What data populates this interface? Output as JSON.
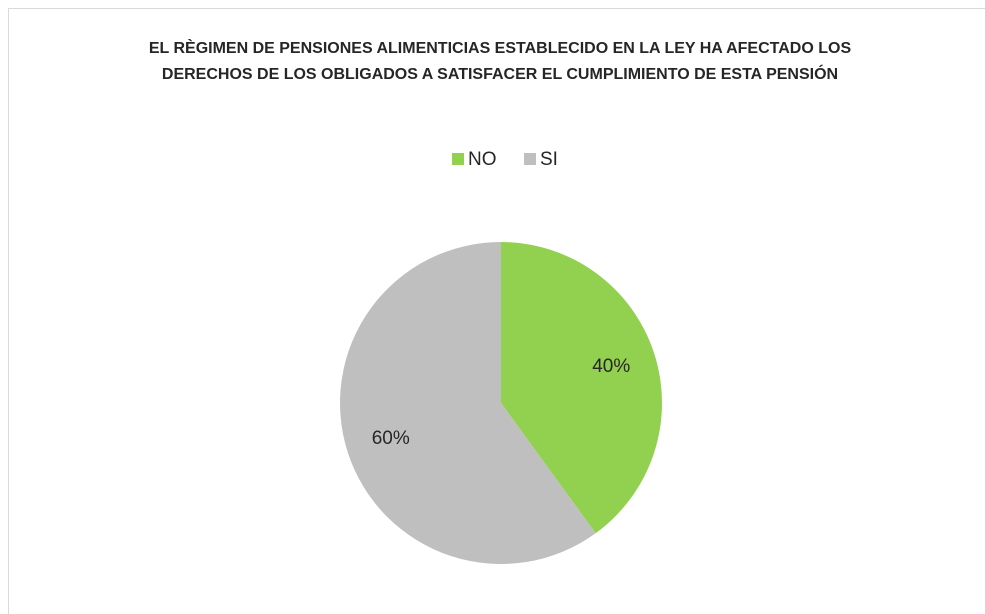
{
  "chart_data": {
    "type": "pie",
    "title": "EL RÈGIMEN DE PENSIONES ALIMENTICIAS ESTABLECIDO EN LA LEY HA AFECTADO LOS DERECHOS DE LOS OBLIGADOS A SATISFACER EL CUMPLIMIENTO DE ESTA PENSIÓN",
    "categories": [
      "NO",
      "SI"
    ],
    "values": [
      40,
      60
    ],
    "value_labels": [
      "40%",
      "60%"
    ],
    "colors": [
      "#92d050",
      "#bfbfbf"
    ],
    "legend": "top"
  }
}
